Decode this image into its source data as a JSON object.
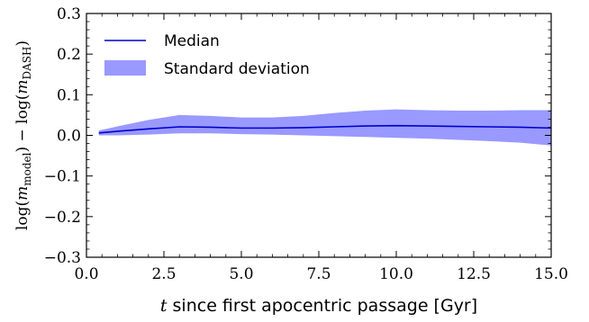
{
  "chart_data": {
    "type": "line",
    "xlabel": "t since first apocentric passage [Gyr]",
    "xlabel_var": "t",
    "xlabel_rest": " since first apocentric passage [Gyr]",
    "ylabel": "log(m_model) − log(m_DASH)",
    "xlim": [
      0.0,
      15.0
    ],
    "ylim": [
      -0.3,
      0.3
    ],
    "xticks": [
      0.0,
      2.5,
      5.0,
      7.5,
      10.0,
      12.5,
      15.0
    ],
    "xtick_labels": [
      "0.0",
      "2.5",
      "5.0",
      "7.5",
      "10.0",
      "12.5",
      "15.0"
    ],
    "yticks": [
      -0.3,
      -0.2,
      -0.1,
      0.0,
      0.1,
      0.2,
      0.3
    ],
    "ytick_labels": [
      "−0.3",
      "−0.2",
      "−0.1",
      "0.0",
      "0.1",
      "0.2",
      "0.3"
    ],
    "grid": false,
    "legend_position": "top-left",
    "series": [
      {
        "name": "Median",
        "kind": "line",
        "color": "#0000cc",
        "x": [
          0.4,
          1.0,
          2.0,
          3.0,
          4.0,
          5.0,
          6.0,
          7.0,
          8.0,
          9.0,
          10.0,
          11.0,
          12.0,
          13.0,
          14.0,
          15.0
        ],
        "y": [
          0.006,
          0.01,
          0.016,
          0.021,
          0.02,
          0.018,
          0.018,
          0.019,
          0.021,
          0.023,
          0.024,
          0.023,
          0.022,
          0.021,
          0.02,
          0.018
        ]
      },
      {
        "name": "Standard deviation",
        "kind": "band",
        "color": "#9999ff",
        "x": [
          0.4,
          1.0,
          2.0,
          3.0,
          4.0,
          5.0,
          6.0,
          7.0,
          8.0,
          9.0,
          10.0,
          11.0,
          12.0,
          13.0,
          14.0,
          15.0
        ],
        "upper": [
          0.012,
          0.022,
          0.038,
          0.05,
          0.048,
          0.044,
          0.044,
          0.048,
          0.055,
          0.061,
          0.064,
          0.062,
          0.061,
          0.061,
          0.062,
          0.062
        ],
        "lower": [
          0.0,
          0.0,
          0.002,
          0.005,
          0.005,
          0.003,
          0.002,
          0.0,
          -0.002,
          -0.004,
          -0.006,
          -0.008,
          -0.011,
          -0.014,
          -0.018,
          -0.025
        ]
      }
    ]
  }
}
